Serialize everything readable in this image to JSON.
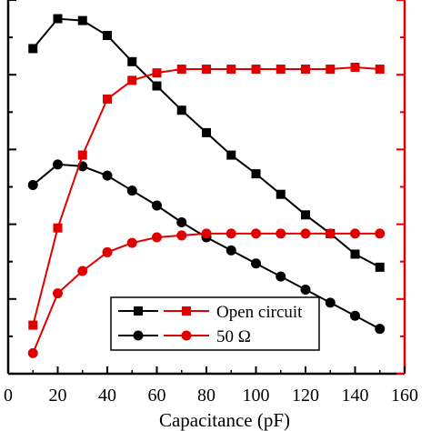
{
  "chart_data": {
    "type": "line",
    "xlabel": "Capacitance (pF)",
    "xlim": [
      0,
      160
    ],
    "x_ticks": [
      "0",
      "20",
      "40",
      "60",
      "80",
      "100",
      "120",
      "140",
      "160"
    ],
    "left_ylim": [
      0,
      10
    ],
    "right_ylim": [
      0,
      10
    ],
    "grid": false,
    "legend_position": "bottom-center",
    "series": [
      {
        "name": "",
        "axis": "left",
        "marker": "square",
        "color": "#000000",
        "x": [
          10,
          20,
          30,
          40,
          50,
          60,
          70,
          80,
          90,
          100,
          110,
          120,
          130,
          140,
          150
        ],
        "y": [
          8.7,
          9.5,
          9.45,
          9.05,
          8.35,
          7.7,
          7.05,
          6.45,
          5.85,
          5.35,
          4.8,
          4.25,
          3.75,
          3.2,
          2.85
        ]
      },
      {
        "name": "",
        "axis": "left",
        "marker": "circle",
        "color": "#000000",
        "x": [
          10,
          20,
          30,
          40,
          50,
          60,
          70,
          80,
          90,
          100,
          110,
          120,
          130,
          140,
          150
        ],
        "y": [
          5.05,
          5.6,
          5.55,
          5.3,
          4.9,
          4.5,
          4.05,
          3.65,
          3.3,
          2.95,
          2.6,
          2.25,
          1.9,
          1.55,
          1.2
        ]
      },
      {
        "name": "Open circuit",
        "axis": "right",
        "marker": "square",
        "color": "#e00000",
        "x": [
          10,
          20,
          30,
          40,
          50,
          60,
          70,
          80,
          90,
          100,
          110,
          120,
          130,
          140,
          150
        ],
        "y": [
          1.3,
          3.9,
          5.85,
          7.35,
          7.85,
          8.05,
          8.15,
          8.15,
          8.15,
          8.15,
          8.15,
          8.15,
          8.15,
          8.2,
          8.15
        ]
      },
      {
        "name": "50 Ω",
        "axis": "right",
        "marker": "circle",
        "color": "#e00000",
        "x": [
          10,
          20,
          30,
          40,
          50,
          60,
          70,
          80,
          90,
          100,
          110,
          120,
          130,
          140,
          150
        ],
        "y": [
          0.55,
          2.15,
          2.75,
          3.25,
          3.5,
          3.65,
          3.7,
          3.75,
          3.75,
          3.75,
          3.75,
          3.75,
          3.75,
          3.75,
          3.75
        ]
      }
    ],
    "legend": [
      {
        "label": "Open circuit",
        "marker": "square"
      },
      {
        "label": "50 Ω",
        "marker": "circle"
      }
    ]
  }
}
